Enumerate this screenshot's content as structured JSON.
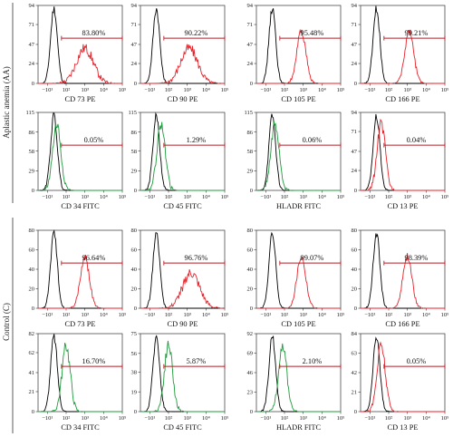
{
  "groups": [
    {
      "label": "Aplastic anemia (AA)"
    },
    {
      "label": "Control (C)"
    }
  ],
  "x_tick_labels": [
    "−10¹",
    "10²",
    "10³",
    "10⁴",
    "10⁵"
  ],
  "colors": {
    "isotype": "#000000",
    "pe": "#e8222a",
    "fitc": "#1f9a3c",
    "gate": "#b21e28",
    "axis": "#333333"
  },
  "chart_data": [
    {
      "type": "histogram",
      "group": 0,
      "xlabel": "CD 73 PE",
      "marker_color": "pe",
      "marker_mode": "broad",
      "peak_logx": 3.0,
      "marker_pct": "83.80%",
      "y_ticks": [
        0,
        24,
        47,
        71,
        94
      ],
      "ylim": [
        0,
        94
      ]
    },
    {
      "type": "histogram",
      "group": 0,
      "xlabel": "CD 90 PE",
      "marker_color": "pe",
      "marker_mode": "broad",
      "peak_logx": 3.1,
      "marker_pct": "90.22%",
      "y_ticks": [
        0,
        24,
        47,
        71,
        94
      ],
      "ylim": [
        0,
        94
      ]
    },
    {
      "type": "histogram",
      "group": 0,
      "xlabel": "CD 105 PE",
      "marker_color": "pe",
      "marker_mode": "sharp",
      "peak_logx": 2.9,
      "marker_pct": "95.48%",
      "y_ticks": [
        0,
        24,
        47,
        71,
        94
      ],
      "ylim": [
        0,
        94
      ]
    },
    {
      "type": "histogram",
      "group": 0,
      "xlabel": "CD 166 PE",
      "marker_color": "pe",
      "marker_mode": "sharp",
      "peak_logx": 3.1,
      "marker_pct": "99.21%",
      "y_ticks": [
        0,
        24,
        47,
        71,
        94
      ],
      "ylim": [
        0,
        94
      ]
    },
    {
      "type": "histogram",
      "group": 0,
      "xlabel": "CD 34 FITC",
      "marker_color": "fitc",
      "marker_mode": "overlap",
      "peak_logx": 1.5,
      "marker_pct": "0.05%",
      "y_ticks": [
        0,
        29,
        58,
        86,
        115
      ],
      "ylim": [
        0,
        115
      ]
    },
    {
      "type": "histogram",
      "group": 0,
      "xlabel": "CD 45 FITC",
      "marker_color": "fitc",
      "marker_mode": "overlap",
      "peak_logx": 1.6,
      "marker_pct": "1.29%",
      "y_ticks": [
        0,
        29,
        58,
        86,
        115
      ],
      "ylim": [
        0,
        115
      ]
    },
    {
      "type": "histogram",
      "group": 0,
      "xlabel": "HLADR FITC",
      "marker_color": "fitc",
      "marker_mode": "overlap",
      "peak_logx": 1.5,
      "marker_pct": "0.06%",
      "y_ticks": [
        0,
        29,
        58,
        86,
        115
      ],
      "ylim": [
        0,
        115
      ]
    },
    {
      "type": "histogram",
      "group": 0,
      "xlabel": "CD 13 PE",
      "marker_color": "pe",
      "marker_mode": "overlap",
      "peak_logx": 1.6,
      "marker_pct": "0.04%",
      "y_ticks": [
        0,
        24,
        47,
        71,
        94
      ],
      "ylim": [
        0,
        94
      ]
    },
    {
      "type": "histogram",
      "group": 1,
      "xlabel": "CD 73 PE",
      "marker_color": "pe",
      "marker_mode": "sharp",
      "peak_logx": 3.0,
      "marker_pct": "96.64%",
      "y_ticks": [
        0,
        20,
        40,
        60,
        80
      ],
      "ylim": [
        0,
        80
      ]
    },
    {
      "type": "histogram",
      "group": 1,
      "xlabel": "CD 90 PE",
      "marker_color": "pe",
      "marker_mode": "broad",
      "peak_logx": 3.2,
      "marker_pct": "96.76%",
      "y_ticks": [
        0,
        20,
        40,
        60,
        80
      ],
      "ylim": [
        0,
        80
      ]
    },
    {
      "type": "histogram",
      "group": 1,
      "xlabel": "CD 105 PE",
      "marker_color": "pe",
      "marker_mode": "sharp",
      "peak_logx": 2.9,
      "marker_pct": "99.07%",
      "y_ticks": [
        0,
        20,
        40,
        60,
        80
      ],
      "ylim": [
        0,
        80
      ]
    },
    {
      "type": "histogram",
      "group": 1,
      "xlabel": "CD 166 PE",
      "marker_color": "pe",
      "marker_mode": "sharp",
      "peak_logx": 3.0,
      "marker_pct": "98.39%",
      "y_ticks": [
        0,
        20,
        40,
        60,
        80
      ],
      "ylim": [
        0,
        80
      ]
    },
    {
      "type": "histogram",
      "group": 1,
      "xlabel": "CD 34 FITC",
      "marker_color": "fitc",
      "marker_mode": "overlap",
      "peak_logx": 2.0,
      "marker_pct": "16.70%",
      "y_ticks": [
        0,
        21,
        41,
        62,
        82
      ],
      "ylim": [
        0,
        82
      ]
    },
    {
      "type": "histogram",
      "group": 1,
      "xlabel": "CD 45 FITC",
      "marker_color": "fitc",
      "marker_mode": "overlap",
      "peak_logx": 2.0,
      "marker_pct": "5.87%",
      "y_ticks": [
        0,
        19,
        38,
        56,
        75
      ],
      "ylim": [
        0,
        75
      ]
    },
    {
      "type": "histogram",
      "group": 1,
      "xlabel": "HLADR FITC",
      "marker_color": "fitc",
      "marker_mode": "overlap",
      "peak_logx": 1.9,
      "marker_pct": "2.10%",
      "y_ticks": [
        0,
        23,
        46,
        69,
        92
      ],
      "ylim": [
        0,
        92
      ]
    },
    {
      "type": "histogram",
      "group": 1,
      "xlabel": "CD 13 PE",
      "marker_color": "pe",
      "marker_mode": "overlap",
      "peak_logx": 1.6,
      "marker_pct": "0.05%",
      "y_ticks": [
        0,
        21,
        42,
        63,
        84
      ],
      "ylim": [
        0,
        84
      ]
    }
  ]
}
